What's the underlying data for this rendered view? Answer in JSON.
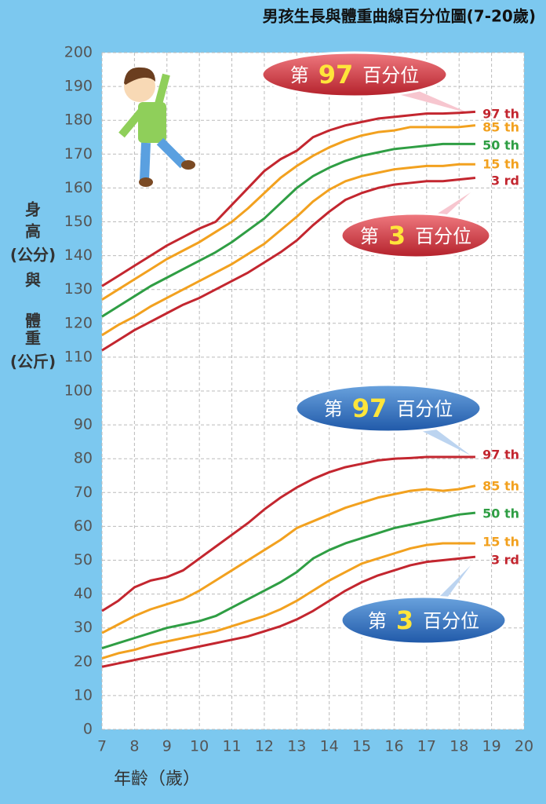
{
  "chart_data": {
    "type": "line",
    "title": "男孩生長與體重曲線百分位圖(7-20歲)",
    "ylabel_lines": [
      "身",
      "高",
      "(公分)",
      "與",
      "體",
      "重",
      "(公斤)"
    ],
    "xlabel": "年齡（歲）",
    "xlim": [
      7,
      20
    ],
    "xticks": [
      7,
      8,
      9,
      10,
      11,
      12,
      13,
      14,
      15,
      16,
      17,
      18,
      19,
      20
    ],
    "ylim": [
      0,
      200
    ],
    "yticks": [
      0,
      10,
      20,
      30,
      40,
      50,
      60,
      70,
      80,
      90,
      100,
      110,
      120,
      130,
      140,
      150,
      160,
      170,
      180,
      190,
      200
    ],
    "grid": true,
    "x": [
      7,
      7.5,
      8,
      8.5,
      9,
      9.5,
      10,
      10.5,
      11,
      11.5,
      12,
      12.5,
      13,
      13.5,
      14,
      14.5,
      15,
      15.5,
      16,
      16.5,
      17,
      17.5,
      18,
      18.5
    ],
    "series": [
      {
        "name": "97 th",
        "color": "#c3262f",
        "values": [
          131,
          134,
          137,
          140,
          143,
          145.5,
          148,
          150,
          155,
          160,
          165,
          168.5,
          171,
          175,
          177,
          178.5,
          179.5,
          180.5,
          181,
          181.5,
          182,
          182,
          182.2,
          182.5
        ]
      },
      {
        "name": "85 th",
        "color": "#f2a11f",
        "values": [
          127,
          130,
          133,
          136,
          139,
          141.5,
          144,
          147,
          150,
          154,
          158.5,
          163,
          166.5,
          169.5,
          172,
          174,
          175.5,
          176.5,
          177,
          178,
          178,
          178,
          178,
          178.5
        ]
      },
      {
        "name": "50 th",
        "color": "#2f9e44",
        "values": [
          122,
          125,
          128,
          131,
          133.5,
          136,
          138.5,
          141,
          144,
          147.5,
          151,
          155.5,
          160,
          163.5,
          166,
          168,
          169.5,
          170.5,
          171.5,
          172,
          172.5,
          173,
          173,
          173
        ]
      },
      {
        "name": "15 th",
        "color": "#f2a11f",
        "values": [
          116.5,
          119.5,
          122,
          125,
          127.5,
          130,
          132.5,
          135,
          137.5,
          140.5,
          143.5,
          147.5,
          151.5,
          156,
          159.5,
          162,
          163.5,
          164.5,
          165.5,
          166,
          166.5,
          166.5,
          167,
          167
        ]
      },
      {
        "name": "3 rd",
        "color": "#c3262f",
        "values": [
          112,
          115,
          118,
          120.5,
          123,
          125.5,
          127.5,
          130,
          132.5,
          135,
          138,
          141,
          144.5,
          149,
          153,
          156.5,
          158.5,
          160,
          161,
          161.5,
          162,
          162,
          162.5,
          163
        ]
      },
      {
        "name": "97 th",
        "color": "#c3262f",
        "values": [
          35,
          38,
          42,
          44,
          45,
          47,
          50.5,
          54,
          57.5,
          61,
          65,
          68.5,
          71.5,
          74,
          76,
          77.5,
          78.5,
          79.5,
          80,
          80.2,
          80.5,
          80.5,
          80.5,
          80.5
        ]
      },
      {
        "name": "85 th",
        "color": "#f2a11f",
        "values": [
          28.5,
          31,
          33.5,
          35.5,
          37,
          38.5,
          41,
          44,
          47,
          50,
          53,
          56,
          59.5,
          61.5,
          63.5,
          65.5,
          67,
          68.5,
          69.5,
          70.5,
          71,
          70.5,
          71,
          72
        ]
      },
      {
        "name": "50 th",
        "color": "#2f9e44",
        "values": [
          24,
          25.5,
          27,
          28.5,
          30,
          31,
          32,
          33.5,
          36,
          38.5,
          41,
          43.5,
          46.5,
          50.5,
          53,
          55,
          56.5,
          58,
          59.5,
          60.5,
          61.5,
          62.5,
          63.5,
          64
        ]
      },
      {
        "name": "15 th",
        "color": "#f2a11f",
        "values": [
          21,
          22.5,
          23.5,
          25,
          26,
          27,
          28,
          29,
          30.5,
          32,
          33.5,
          35.5,
          38,
          41,
          44,
          46.5,
          49,
          50.5,
          52,
          53.5,
          54.5,
          55,
          55,
          55
        ]
      },
      {
        "name": "3 rd",
        "color": "#c3262f",
        "values": [
          18.5,
          19.5,
          20.5,
          21.5,
          22.5,
          23.5,
          24.5,
          25.5,
          26.5,
          27.5,
          29,
          30.5,
          32.5,
          35,
          38,
          41,
          43.5,
          45.5,
          47,
          48.5,
          49.5,
          50,
          50.5,
          51
        ]
      }
    ],
    "callouts": [
      {
        "prefix": "第",
        "number": "97",
        "suffix": "百分位"
      },
      {
        "prefix": "第",
        "number": "3",
        "suffix": "百分位"
      },
      {
        "prefix": "第",
        "number": "97",
        "suffix": "百分位"
      },
      {
        "prefix": "第",
        "number": "3",
        "suffix": "百分位"
      }
    ]
  }
}
